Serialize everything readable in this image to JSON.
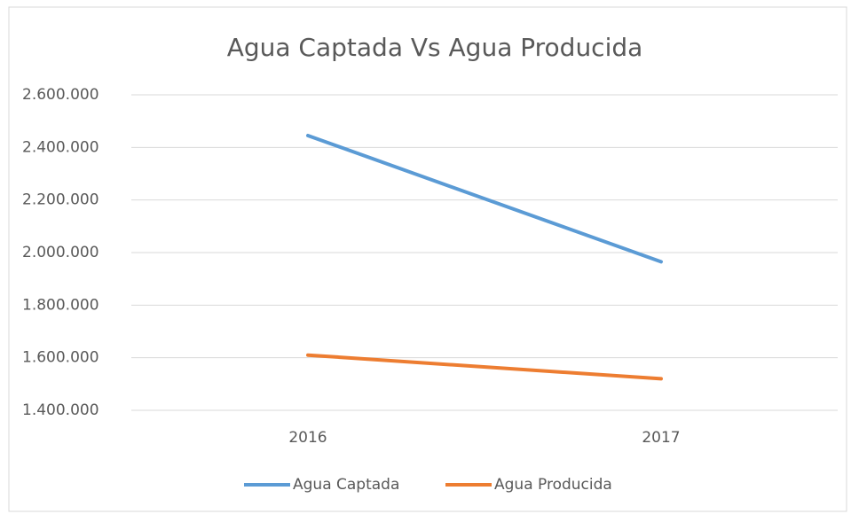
{
  "chart_data": {
    "type": "line",
    "title": "Agua Captada Vs Agua Producida",
    "categories": [
      "2016",
      "2017"
    ],
    "series": [
      {
        "name": "Agua Captada",
        "color": "#5b9bd5",
        "values": [
          2445000,
          1965000
        ]
      },
      {
        "name": "Agua Producida",
        "color": "#ed7d31",
        "values": [
          1610000,
          1520000
        ]
      }
    ],
    "ylim": [
      1400000,
      2600000
    ],
    "yticks": [
      {
        "value": 1400000,
        "label": "1.400.000"
      },
      {
        "value": 1600000,
        "label": "1.600.000"
      },
      {
        "value": 1800000,
        "label": "1.800.000"
      },
      {
        "value": 2000000,
        "label": "2.000.000"
      },
      {
        "value": 2200000,
        "label": "2.200.000"
      },
      {
        "value": 2400000,
        "label": "2.400.000"
      },
      {
        "value": 2600000,
        "label": "2.600.000"
      }
    ],
    "grid": true,
    "legend": "bottom"
  }
}
